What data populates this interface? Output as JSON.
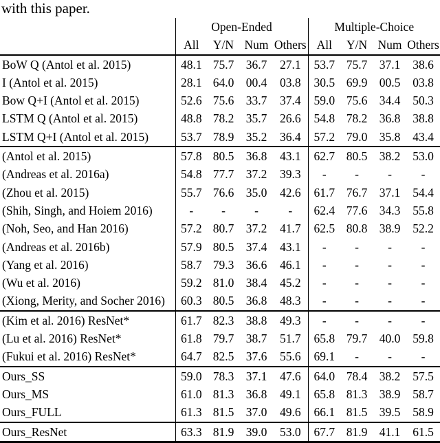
{
  "page": {
    "intro_text": "with this paper."
  },
  "colors": {
    "text": "#000000",
    "background": "#ffffff",
    "rule": "#000000"
  },
  "table": {
    "groups": [
      {
        "label": "Open-Ended",
        "columns": [
          "All",
          "Y/N",
          "Num",
          "Others"
        ]
      },
      {
        "label": "Multiple-Choice",
        "columns": [
          "All",
          "Y/N",
          "Num",
          "Others"
        ]
      }
    ],
    "sections": [
      {
        "rows": [
          {
            "label": "BoW Q (Antol et al. 2015)",
            "open_ended": [
              "48.1",
              "75.7",
              "36.7",
              "27.1"
            ],
            "multiple_choice": [
              "53.7",
              "75.7",
              "37.1",
              "38.6"
            ]
          },
          {
            "label": "I (Antol et al. 2015)",
            "open_ended": [
              "28.1",
              "64.0",
              "00.4",
              "03.8"
            ],
            "multiple_choice": [
              "30.5",
              "69.9",
              "00.5",
              "03.8"
            ]
          },
          {
            "label": "Bow Q+I (Antol et al. 2015)",
            "open_ended": [
              "52.6",
              "75.6",
              "33.7",
              "37.4"
            ],
            "multiple_choice": [
              "59.0",
              "75.6",
              "34.4",
              "50.3"
            ]
          },
          {
            "label": "LSTM Q (Antol et al. 2015)",
            "open_ended": [
              "48.8",
              "78.2",
              "35.7",
              "26.6"
            ],
            "multiple_choice": [
              "54.8",
              "78.2",
              "36.8",
              "38.8"
            ]
          },
          {
            "label": "LSTM Q+I (Antol et al. 2015)",
            "open_ended": [
              "53.7",
              "78.9",
              "35.2",
              "36.4"
            ],
            "multiple_choice": [
              "57.2",
              "79.0",
              "35.8",
              "43.4"
            ]
          }
        ]
      },
      {
        "rows": [
          {
            "label": "(Antol et al. 2015)",
            "open_ended": [
              "57.8",
              "80.5",
              "36.8",
              "43.1"
            ],
            "multiple_choice": [
              "62.7",
              "80.5",
              "38.2",
              "53.0"
            ]
          },
          {
            "label": "(Andreas et al. 2016a)",
            "open_ended": [
              "54.8",
              "77.7",
              "37.2",
              "39.3"
            ],
            "multiple_choice": [
              "-",
              "-",
              "-",
              "-"
            ]
          },
          {
            "label": "(Zhou et al. 2015)",
            "open_ended": [
              "55.7",
              "76.6",
              "35.0",
              "42.6"
            ],
            "multiple_choice": [
              "61.7",
              "76.7",
              "37.1",
              "54.4"
            ]
          },
          {
            "label": "(Shih, Singh, and Hoiem 2016)",
            "open_ended": [
              "-",
              "-",
              "-",
              "-"
            ],
            "multiple_choice": [
              "62.4",
              "77.6",
              "34.3",
              "55.8"
            ]
          },
          {
            "label": "(Noh, Seo, and Han 2016)",
            "open_ended": [
              "57.2",
              "80.7",
              "37.2",
              "41.7"
            ],
            "multiple_choice": [
              "62.5",
              "80.8",
              "38.9",
              "52.2"
            ]
          },
          {
            "label": "(Andreas et al. 2016b)",
            "open_ended": [
              "57.9",
              "80.5",
              "37.4",
              "43.1"
            ],
            "multiple_choice": [
              "-",
              "-",
              "-",
              "-"
            ]
          },
          {
            "label": "(Yang et al. 2016)",
            "open_ended": [
              "58.7",
              "79.3",
              "36.6",
              "46.1"
            ],
            "multiple_choice": [
              "-",
              "-",
              "-",
              "-"
            ]
          },
          {
            "label": "(Wu et al. 2016)",
            "open_ended": [
              "59.2",
              "81.0",
              "38.4",
              "45.2"
            ],
            "multiple_choice": [
              "-",
              "-",
              "-",
              "-"
            ]
          },
          {
            "label": "(Xiong, Merity, and Socher 2016)",
            "open_ended": [
              "60.3",
              "80.5",
              "36.8",
              "48.3"
            ],
            "multiple_choice": [
              "-",
              "-",
              "-",
              "-"
            ]
          }
        ]
      },
      {
        "rows": [
          {
            "label": "(Kim et al. 2016) ResNet*",
            "open_ended": [
              "61.7",
              "82.3",
              "38.8",
              "49.3"
            ],
            "multiple_choice": [
              "-",
              "-",
              "-",
              "-"
            ]
          },
          {
            "label": "(Lu et al. 2016) ResNet*",
            "open_ended": [
              "61.8",
              "79.7",
              "38.7",
              "51.7"
            ],
            "multiple_choice": [
              "65.8",
              "79.7",
              "40.0",
              "59.8"
            ]
          },
          {
            "label": "(Fukui et al. 2016) ResNet*",
            "open_ended": [
              "64.7",
              "82.5",
              "37.6",
              "55.6"
            ],
            "multiple_choice": [
              "69.1",
              "-",
              "-",
              "-"
            ]
          }
        ]
      },
      {
        "rows": [
          {
            "label": "Ours_SS",
            "open_ended": [
              "59.0",
              "78.3",
              "37.1",
              "47.6"
            ],
            "multiple_choice": [
              "64.0",
              "78.4",
              "38.2",
              "57.5"
            ]
          },
          {
            "label": "Ours_MS",
            "open_ended": [
              "61.0",
              "81.3",
              "36.8",
              "49.1"
            ],
            "multiple_choice": [
              "65.8",
              "81.3",
              "38.9",
              "58.7"
            ]
          },
          {
            "label": "Ours_FULL",
            "open_ended": [
              "61.3",
              "81.5",
              "37.0",
              "49.6"
            ],
            "multiple_choice": [
              "66.1",
              "81.5",
              "39.5",
              "58.9"
            ]
          }
        ]
      },
      {
        "rows": [
          {
            "label": "Ours_ResNet",
            "open_ended": [
              "63.3",
              "81.9",
              "39.0",
              "53.0"
            ],
            "multiple_choice": [
              "67.7",
              "81.9",
              "41.1",
              "61.5"
            ]
          }
        ]
      }
    ]
  }
}
